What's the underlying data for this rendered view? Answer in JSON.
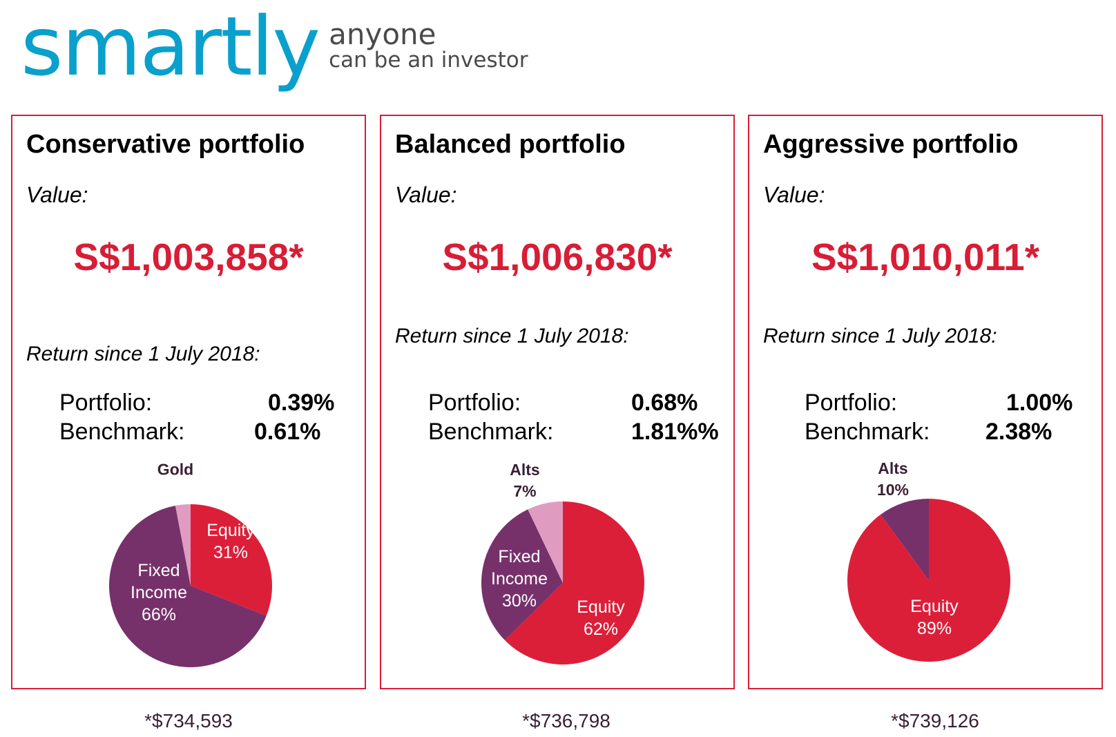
{
  "logo": {
    "brand": "smartly",
    "tagline_line1": "anyone",
    "tagline_line2": "can be an investor"
  },
  "colors": {
    "accent": "#d81d36",
    "brand": "#0aa0cc",
    "equity": "#dc1f39",
    "fixed_income": "#76316b",
    "alt": "#e09cc0"
  },
  "portfolios": [
    {
      "title": "Conservative portfolio",
      "value_label": "Value:",
      "value": "S$1,003,858*",
      "return_label": "Return since 1 July 2018:",
      "portfolio_label": "Portfolio:",
      "portfolio_return": "0.39%",
      "benchmark_label": "Benchmark:",
      "benchmark_return": "0.61%",
      "footnote": "*$734,593",
      "labels": {
        "equity": "Equity",
        "equity_pct": "31%",
        "fixed": "Fixed",
        "income": "Income",
        "fixed_pct": "66%",
        "other": "Gold"
      }
    },
    {
      "title": "Balanced portfolio",
      "value_label": "Value:",
      "value": "S$1,006,830*",
      "return_label": "Return since 1 July 2018:",
      "portfolio_label": "Portfolio:",
      "portfolio_return": "0.68%",
      "benchmark_label": "Benchmark:",
      "benchmark_return": "1.81%%",
      "footnote": "*$736,798",
      "labels": {
        "equity": "Equity",
        "equity_pct": "62%",
        "fixed": "Fixed",
        "income": "Income",
        "fixed_pct": "30%",
        "other": "Alts",
        "other_pct": "7%"
      }
    },
    {
      "title": "Aggressive portfolio",
      "value_label": "Value:",
      "value": "S$1,010,011*",
      "return_label": "Return since 1 July 2018:",
      "portfolio_label": "Portfolio:",
      "portfolio_return": "1.00%",
      "benchmark_label": "Benchmark:",
      "benchmark_return": "2.38%",
      "footnote": "*$739,126",
      "labels": {
        "equity": "Equity",
        "equity_pct": "89%",
        "other": "Alts",
        "other_pct": "10%"
      }
    }
  ],
  "chart_data": [
    {
      "type": "pie",
      "categories": [
        "Equity",
        "Fixed Income",
        "Gold"
      ],
      "values": [
        31,
        66,
        3
      ]
    },
    {
      "type": "pie",
      "categories": [
        "Equity",
        "Fixed Income",
        "Alts"
      ],
      "values": [
        62,
        30,
        7
      ]
    },
    {
      "type": "pie",
      "categories": [
        "Equity",
        "Alts"
      ],
      "values": [
        89,
        10
      ]
    }
  ]
}
